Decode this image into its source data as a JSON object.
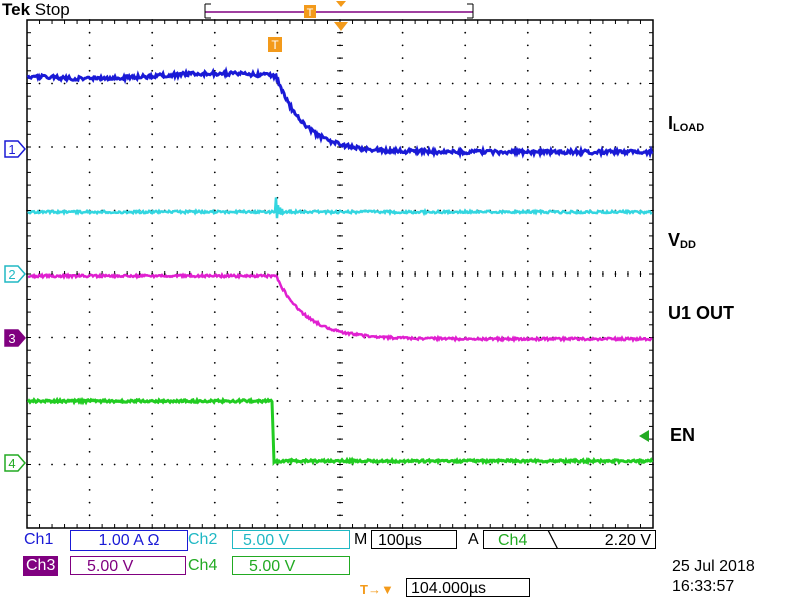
{
  "header": {
    "brand": "Tek",
    "state": "Stop"
  },
  "trace_labels": {
    "iload_main": "I",
    "iload_sub": "LOAD",
    "vdd_main": "V",
    "vdd_sub": "DD",
    "u1out": "U1 OUT",
    "en": "EN"
  },
  "channel_markers": [
    "1",
    "2",
    "3",
    "4"
  ],
  "trigger_marker": "T",
  "colors": {
    "ch1": "#1a1ad6",
    "ch2": "#33d6e0",
    "ch3": "#e020d0",
    "ch4": "#22cc22",
    "ch3_label_bg": "#800080",
    "grid": "#000000"
  },
  "readouts": {
    "ch1_name": "Ch1",
    "ch1_scale": "1.00 A Ω",
    "ch2_name": "Ch2",
    "ch2_scale": "5.00 V",
    "ch3_name": "Ch3",
    "ch3_scale": "5.00 V",
    "ch4_name": "Ch4",
    "ch4_scale": "5.00 V",
    "timebase_prefix": "M",
    "timebase": "100µs",
    "trigger_prefix": "A",
    "trigger_source": "Ch4",
    "trigger_slope": "╲",
    "trigger_level": "2.20 V",
    "trigger_position_label": "T→▼",
    "trigger_position": "104.000µs",
    "date": "25 Jul  2018",
    "time": "16:33:57"
  }
}
